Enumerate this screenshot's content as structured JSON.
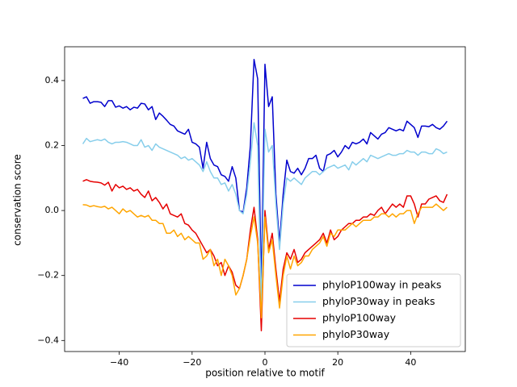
{
  "chart_data": {
    "type": "line",
    "xlabel": "position relative to motif",
    "ylabel": "conservation score",
    "x": [
      -50,
      -49,
      -48,
      -47,
      -46,
      -45,
      -44,
      -43,
      -42,
      -41,
      -40,
      -39,
      -38,
      -37,
      -36,
      -35,
      -34,
      -33,
      -32,
      -31,
      -30,
      -29,
      -28,
      -27,
      -26,
      -25,
      -24,
      -23,
      -22,
      -21,
      -20,
      -19,
      -18,
      -17,
      -16,
      -15,
      -14,
      -13,
      -12,
      -11,
      -10,
      -9,
      -8,
      -7,
      -6,
      -5,
      -4,
      -3,
      -2,
      -1,
      0,
      1,
      2,
      3,
      4,
      5,
      6,
      7,
      8,
      9,
      10,
      11,
      12,
      13,
      14,
      15,
      16,
      17,
      18,
      19,
      20,
      21,
      22,
      23,
      24,
      25,
      26,
      27,
      28,
      29,
      30,
      31,
      32,
      33,
      34,
      35,
      36,
      37,
      38,
      39,
      40,
      41,
      42,
      43,
      44,
      45,
      46,
      47,
      48,
      49,
      50
    ],
    "series": [
      {
        "name": "phyloP100way in peaks",
        "color": "#0000cd",
        "values": [
          0.345,
          0.35,
          0.33,
          0.335,
          0.335,
          0.333,
          0.32,
          0.338,
          0.338,
          0.318,
          0.322,
          0.315,
          0.32,
          0.31,
          0.318,
          0.315,
          0.33,
          0.328,
          0.31,
          0.32,
          0.28,
          0.3,
          0.29,
          0.278,
          0.265,
          0.26,
          0.245,
          0.24,
          0.235,
          0.25,
          0.21,
          0.205,
          0.195,
          0.13,
          0.21,
          0.16,
          0.14,
          0.135,
          0.11,
          0.105,
          0.09,
          0.135,
          0.1,
          0,
          -0.005,
          0.07,
          0.2,
          0.465,
          0.405,
          -0.24,
          0.45,
          0.32,
          0.35,
          0.05,
          -0.1,
          0.05,
          0.155,
          0.12,
          0.115,
          0.13,
          0.11,
          0.13,
          0.16,
          0.16,
          0.17,
          0.13,
          0.12,
          0.17,
          0.175,
          0.185,
          0.165,
          0.18,
          0.2,
          0.19,
          0.21,
          0.205,
          0.21,
          0.22,
          0.205,
          0.24,
          0.23,
          0.22,
          0.235,
          0.24,
          0.255,
          0.25,
          0.245,
          0.25,
          0.245,
          0.275,
          0.265,
          0.255,
          0.225,
          0.26,
          0.26,
          0.258,
          0.265,
          0.255,
          0.25,
          0.26,
          0.275
        ]
      },
      {
        "name": "phyloP30way in peaks",
        "color": "#87ceeb",
        "values": [
          0.205,
          0.222,
          0.212,
          0.215,
          0.218,
          0.215,
          0.22,
          0.21,
          0.205,
          0.21,
          0.21,
          0.212,
          0.21,
          0.205,
          0.2,
          0.2,
          0.218,
          0.195,
          0.2,
          0.185,
          0.205,
          0.195,
          0.19,
          0.185,
          0.18,
          0.175,
          0.17,
          0.16,
          0.165,
          0.155,
          0.16,
          0.15,
          0.14,
          0.12,
          0.15,
          0.12,
          0.1,
          0.1,
          0.08,
          0.085,
          0.06,
          0.08,
          0.05,
          0,
          -0.01,
          0.05,
          0.15,
          0.27,
          0.2,
          -0.3,
          0.25,
          0.18,
          0.2,
          0.02,
          -0.12,
          0.02,
          0.1,
          0.09,
          0.1,
          0.09,
          0.08,
          0.1,
          0.11,
          0.12,
          0.12,
          0.11,
          0.12,
          0.13,
          0.135,
          0.14,
          0.13,
          0.135,
          0.14,
          0.125,
          0.15,
          0.14,
          0.15,
          0.16,
          0.15,
          0.17,
          0.165,
          0.16,
          0.165,
          0.17,
          0.175,
          0.17,
          0.17,
          0.175,
          0.175,
          0.185,
          0.18,
          0.18,
          0.17,
          0.18,
          0.18,
          0.175,
          0.175,
          0.19,
          0.185,
          0.175,
          0.18
        ]
      },
      {
        "name": "phyloP100way",
        "color": "#e60000",
        "values": [
          0.09,
          0.095,
          0.09,
          0.088,
          0.087,
          0.085,
          0.078,
          0.087,
          0.06,
          0.08,
          0.07,
          0.075,
          0.065,
          0.07,
          0.06,
          0.065,
          0.05,
          0.04,
          0.06,
          0.03,
          0.04,
          0.025,
          0.005,
          0.02,
          -0.01,
          -0.015,
          -0.02,
          -0.01,
          -0.04,
          -0.045,
          -0.06,
          -0.07,
          -0.09,
          -0.11,
          -0.13,
          -0.12,
          -0.14,
          -0.17,
          -0.16,
          -0.2,
          -0.17,
          -0.19,
          -0.23,
          -0.24,
          -0.2,
          -0.15,
          -0.06,
          0.01,
          -0.09,
          -0.37,
          0,
          -0.12,
          -0.07,
          -0.18,
          -0.28,
          -0.18,
          -0.13,
          -0.15,
          -0.12,
          -0.16,
          -0.15,
          -0.13,
          -0.12,
          -0.11,
          -0.1,
          -0.09,
          -0.07,
          -0.1,
          -0.06,
          -0.09,
          -0.08,
          -0.06,
          -0.05,
          -0.04,
          -0.04,
          -0.03,
          -0.03,
          -0.02,
          -0.02,
          -0.01,
          -0.015,
          0,
          0.01,
          -0.01,
          0.005,
          0.02,
          0.01,
          0.02,
          0.01,
          0.045,
          0.045,
          0.02,
          -0.02,
          0.02,
          0.02,
          0.035,
          0.04,
          0.045,
          0.03,
          0.025,
          0.05
        ]
      },
      {
        "name": "phyloP30way",
        "color": "#ffa500",
        "values": [
          0.018,
          0.017,
          0.012,
          0.015,
          0.012,
          0.01,
          0.013,
          0.005,
          0.01,
          0,
          -0.01,
          0.005,
          -0.005,
          0,
          -0.01,
          -0.02,
          -0.015,
          -0.02,
          -0.015,
          -0.03,
          -0.03,
          -0.04,
          -0.04,
          -0.07,
          -0.07,
          -0.06,
          -0.08,
          -0.07,
          -0.09,
          -0.08,
          -0.09,
          -0.1,
          -0.1,
          -0.15,
          -0.14,
          -0.12,
          -0.17,
          -0.15,
          -0.2,
          -0.15,
          -0.17,
          -0.2,
          -0.26,
          -0.24,
          -0.2,
          -0.15,
          -0.08,
          -0.02,
          -0.1,
          -0.33,
          -0.02,
          -0.13,
          -0.09,
          -0.2,
          -0.3,
          -0.2,
          -0.14,
          -0.18,
          -0.14,
          -0.17,
          -0.16,
          -0.14,
          -0.14,
          -0.12,
          -0.11,
          -0.1,
          -0.08,
          -0.11,
          -0.07,
          -0.08,
          -0.06,
          -0.06,
          -0.06,
          -0.05,
          -0.04,
          -0.05,
          -0.04,
          -0.03,
          -0.03,
          -0.03,
          -0.02,
          -0.02,
          -0.01,
          -0.01,
          -0.02,
          -0.01,
          -0.02,
          -0.01,
          -0.01,
          0,
          0,
          -0.04,
          -0.01,
          0.01,
          0.01,
          0.01,
          0.01,
          0.02,
          0.01,
          0,
          0.01
        ]
      }
    ],
    "xlim": [
      -55,
      55
    ],
    "ylim": [
      -0.434,
      0.504
    ],
    "xticks": [
      {
        "value": -40,
        "label": "−40"
      },
      {
        "value": -20,
        "label": "−20"
      },
      0,
      20,
      40
    ],
    "yticks": [
      {
        "value": -0.4,
        "label": "−0.4"
      },
      {
        "value": -0.2,
        "label": "−0.2"
      },
      {
        "value": 0,
        "label": "0.0"
      },
      0.2,
      0.4
    ],
    "legend": "lower right",
    "grid": false
  }
}
